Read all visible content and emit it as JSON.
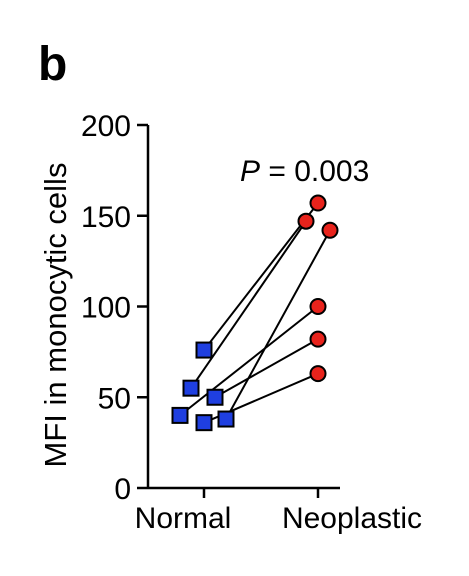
{
  "panel_label": "b",
  "chart_data": {
    "type": "scatter",
    "subtype": "paired-points",
    "title": "",
    "xlabel": "",
    "ylabel": "MFI in monocytic cells",
    "categories": [
      "Normal",
      "Neoplastic"
    ],
    "ylim": [
      0,
      200
    ],
    "yticks": [
      0,
      50,
      100,
      150,
      200
    ],
    "ytick_labels": [
      "0",
      "50",
      "100",
      "150",
      "200"
    ],
    "grid": false,
    "annotation": {
      "italic": "P",
      "rest": " = 0.003"
    },
    "marker_colors": {
      "Normal": "#1f3fe0",
      "Neoplastic": "#e8231c"
    },
    "pairs": [
      {
        "normal": 76,
        "neoplastic": 157
      },
      {
        "normal": 55,
        "neoplastic": 147
      },
      {
        "normal": 50,
        "neoplastic": 82
      },
      {
        "normal": 40,
        "neoplastic": 100
      },
      {
        "normal": 36,
        "neoplastic": 63
      },
      {
        "normal": 38,
        "neoplastic": 142
      }
    ]
  }
}
